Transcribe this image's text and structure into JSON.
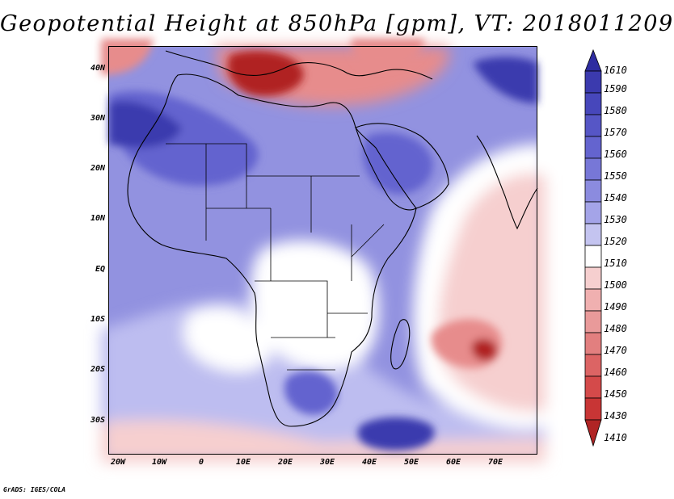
{
  "title": "Geopotential Height at 850hPa [gpm], VT: 2018011209",
  "credit": "GrADS: IGES/COLA",
  "latitude_labels": [
    "40N",
    "30N",
    "20N",
    "10N",
    "EQ",
    "10S",
    "20S",
    "30S"
  ],
  "longitude_labels": [
    "20W",
    "10W",
    "0",
    "10E",
    "20E",
    "30E",
    "40E",
    "50E",
    "60E",
    "70E"
  ],
  "colorbar": {
    "levels": [
      "1610",
      "1590",
      "1580",
      "1570",
      "1560",
      "1550",
      "1540",
      "1530",
      "1520",
      "1510",
      "1500",
      "1490",
      "1480",
      "1470",
      "1460",
      "1450",
      "1430",
      "1410"
    ],
    "colors": [
      "#2e2ca0",
      "#3b3aae",
      "#4747bb",
      "#5656c6",
      "#6464cf",
      "#7777d7",
      "#8b8bdf",
      "#a4a4e8",
      "#c4c4f0",
      "#ffffff",
      "#f6cfcf",
      "#f0b0b0",
      "#e99a9a",
      "#e27f7f",
      "#dc6464",
      "#d44a4a",
      "#c83535",
      "#b02424"
    ]
  },
  "palette": {
    "background": "#9292e0",
    "ocean_light": "#bdbdf0",
    "neutral": "#ffffff",
    "low_light": "#f6cfcf",
    "low_mid": "#e78c8c",
    "low_deep": "#b02424",
    "high_mid": "#6464cf",
    "high_deep": "#3b3aae",
    "coastline": "#000000"
  }
}
